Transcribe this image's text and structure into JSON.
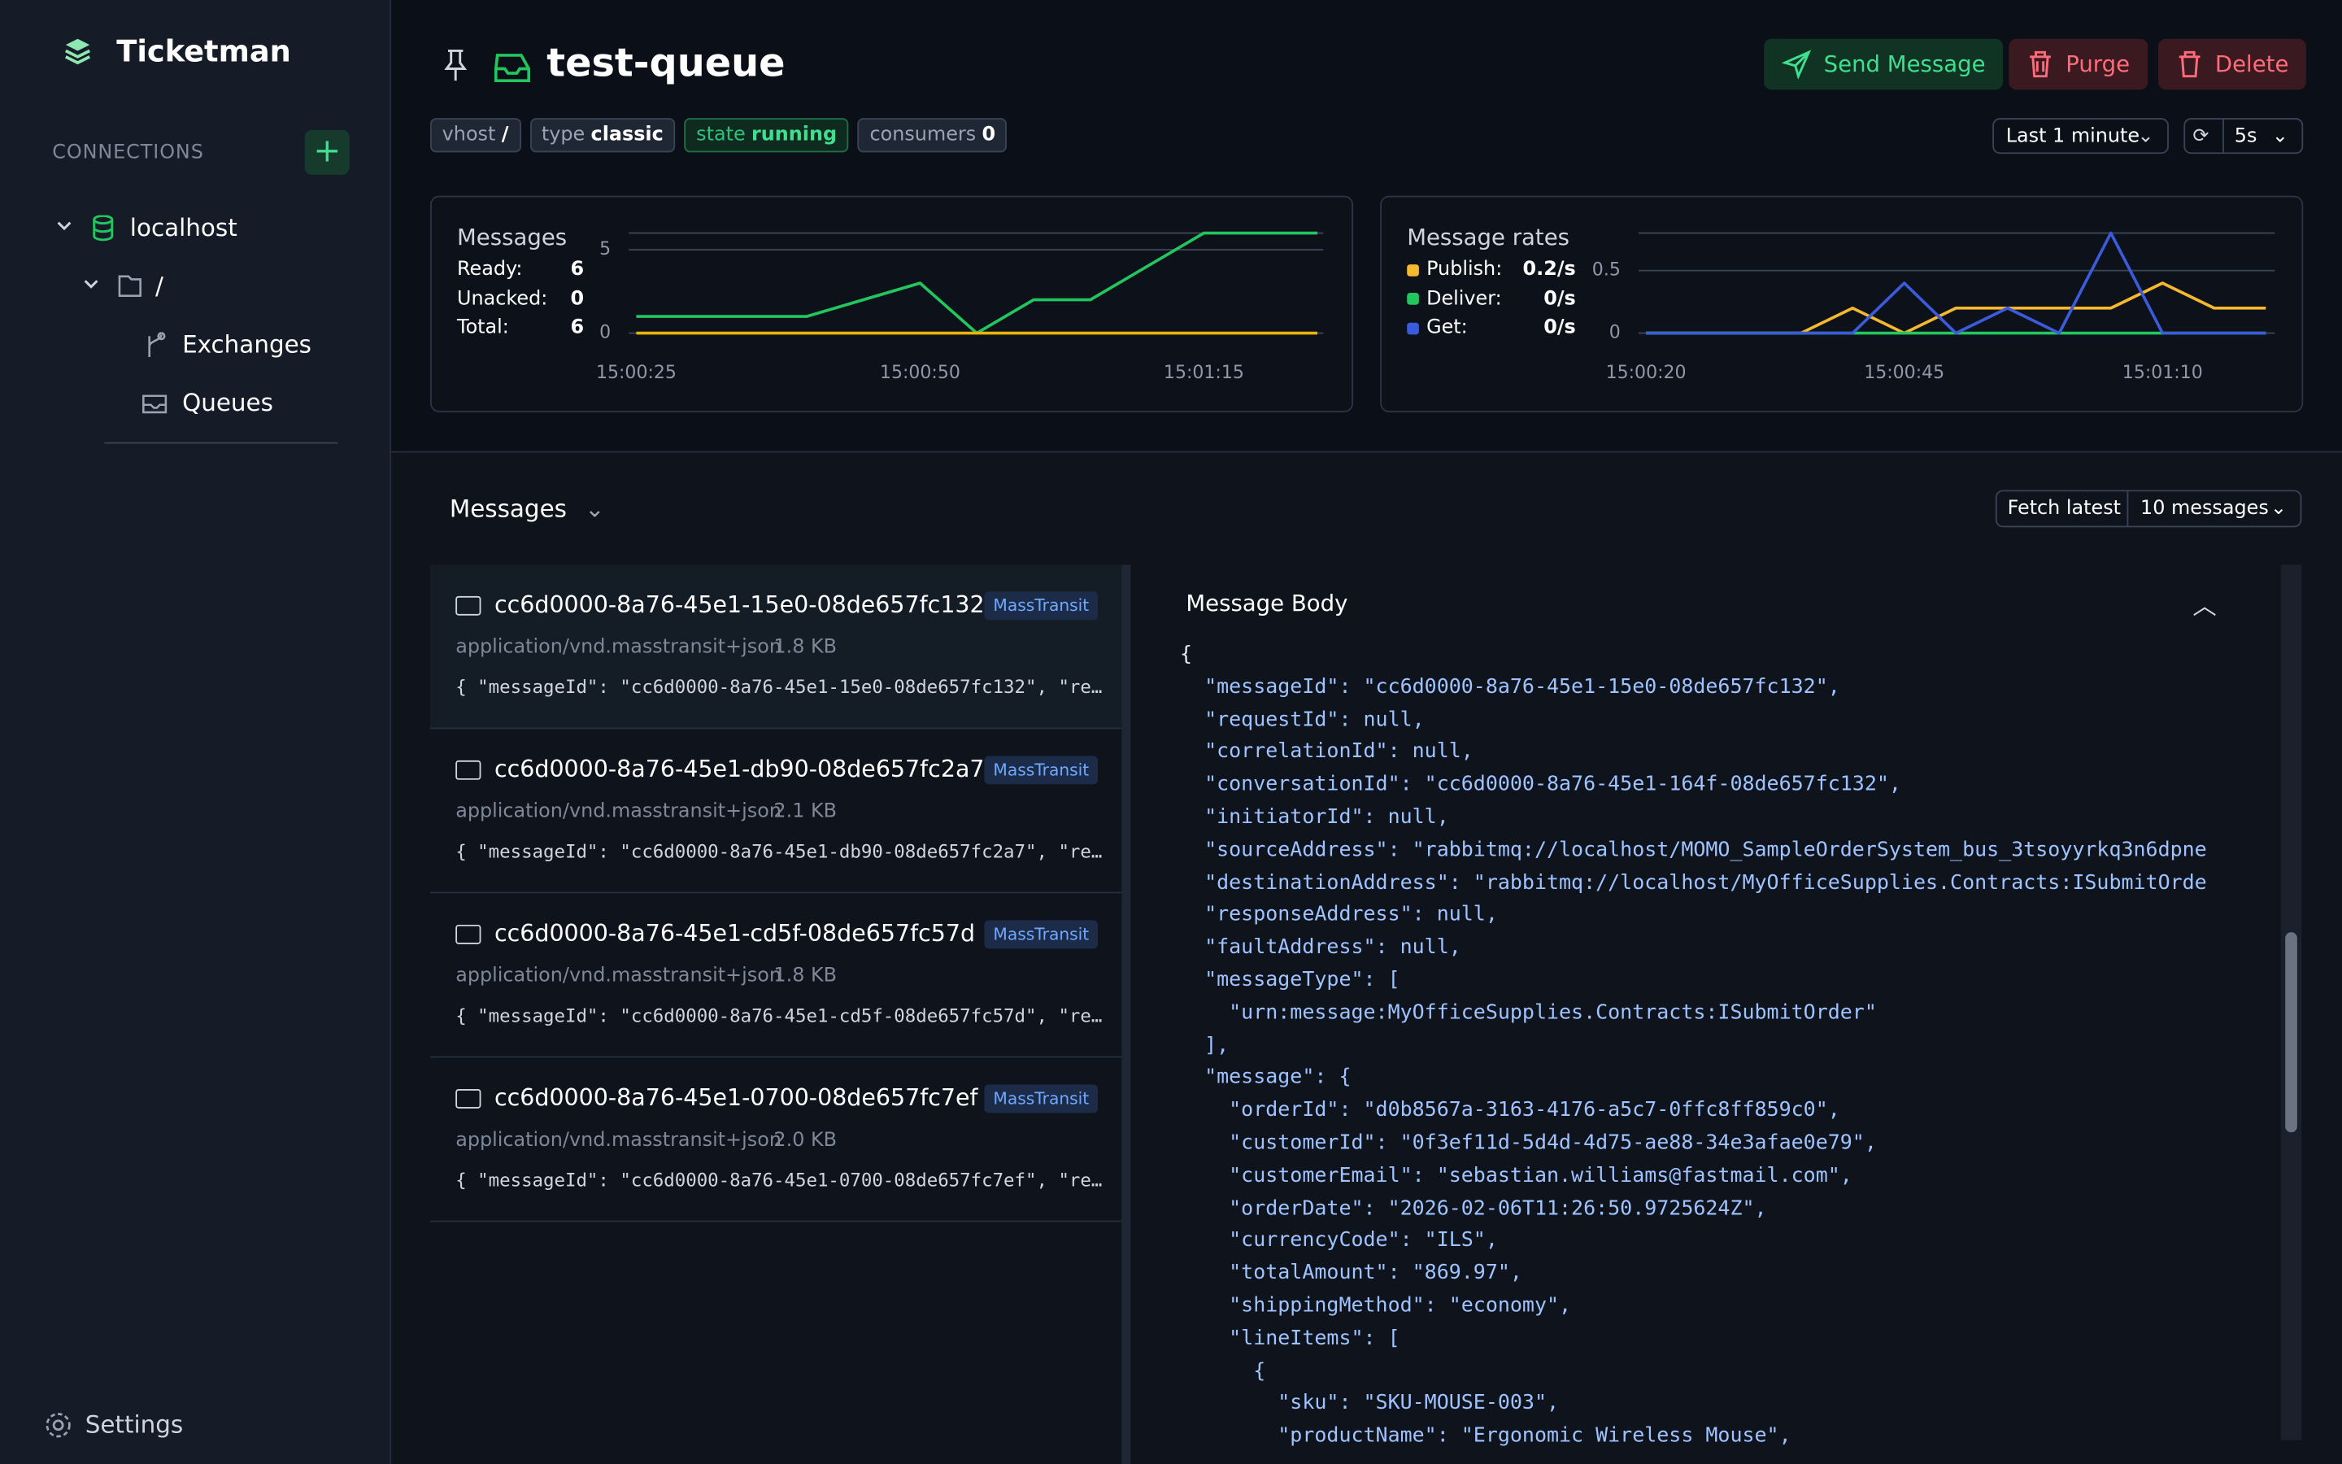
{
  "app_name": "Ticketman",
  "sidebar": {
    "connections_label": "CONNECTIONS",
    "tree": [
      "localhost",
      "/",
      "Exchanges",
      "Queues"
    ],
    "settings": "Settings"
  },
  "header": {
    "queue_name": "test-queue",
    "tags": [
      {
        "label": "vhost",
        "value": "/"
      },
      {
        "label": "type",
        "value": "classic"
      },
      {
        "label": "state",
        "value": "running"
      },
      {
        "label": "consumers",
        "value": "0"
      }
    ],
    "actions": [
      "Send Message",
      "Purge",
      "Delete"
    ],
    "time_range": "Last 1 minute",
    "refresh": "5s"
  },
  "charts": [
    {
      "type": "line",
      "title": "Messages",
      "categories": [
        "15:00:25",
        null,
        null,
        null,
        null,
        "15:00:50",
        null,
        null,
        null,
        null,
        "15:01:15",
        null,
        null
      ],
      "series": [
        {
          "name": "Ready:",
          "color": "#22c55e",
          "current": "6",
          "values": [
            1,
            1,
            1,
            1,
            2,
            3,
            0,
            2,
            2,
            4,
            6,
            6,
            6
          ]
        },
        {
          "name": "Unacked:",
          "color": "#eab308",
          "current": "0",
          "values": [
            0,
            0,
            0,
            0,
            0,
            0,
            0,
            0,
            0,
            0,
            0,
            0,
            0
          ]
        }
      ],
      "total": {
        "label": "Total:",
        "value": "6"
      },
      "ylim": [
        0,
        6
      ],
      "yticks": [
        0,
        5
      ],
      "grid": true
    },
    {
      "type": "line",
      "title": "Message rates",
      "categories": [
        "15:00:20",
        null,
        null,
        null,
        null,
        "15:00:45",
        null,
        null,
        null,
        null,
        "15:01:10",
        null,
        null
      ],
      "series": [
        {
          "name": "Publish:",
          "color": "#f5b82e",
          "current": "0.2/s",
          "values": [
            0,
            0,
            0,
            0,
            0.2,
            0,
            0.2,
            0.2,
            0.2,
            0.2,
            0.4,
            0.2,
            0.2
          ]
        },
        {
          "name": "Deliver:",
          "color": "#22c55e",
          "current": "0/s",
          "values": [
            0,
            0,
            0,
            0,
            0,
            0,
            0,
            0,
            0,
            0,
            0,
            0,
            0
          ]
        },
        {
          "name": "Get:",
          "color": "#3b5bdb",
          "current": "0/s",
          "values": [
            0,
            0,
            0,
            0,
            0,
            0.4,
            0,
            0.2,
            0,
            0.8,
            0,
            0,
            0
          ]
        }
      ],
      "ylim": [
        0,
        0.8
      ],
      "yticks": [
        0,
        0.5
      ],
      "grid": true
    }
  ],
  "messages_panel": {
    "title": "Messages",
    "fetch": "Fetch latest",
    "count": "10 messages",
    "items": [
      {
        "id": "cc6d0000-8a76-45e1-15e0-08de657fc132",
        "badge": "MassTransit",
        "content_type": "application/vnd.masstransit+json",
        "size": "1.8 KB",
        "preview": "{ \"messageId\": \"cc6d0000-8a76-45e1-15e0-08de657fc132\", \"re…"
      },
      {
        "id": "cc6d0000-8a76-45e1-db90-08de657fc2a7",
        "badge": "MassTransit",
        "content_type": "application/vnd.masstransit+json",
        "size": "2.1 KB",
        "preview": "{ \"messageId\": \"cc6d0000-8a76-45e1-db90-08de657fc2a7\", \"re…"
      },
      {
        "id": "cc6d0000-8a76-45e1-cd5f-08de657fc57d",
        "badge": "MassTransit",
        "content_type": "application/vnd.masstransit+json",
        "size": "1.8 KB",
        "preview": "{ \"messageId\": \"cc6d0000-8a76-45e1-cd5f-08de657fc57d\", \"re…"
      },
      {
        "id": "cc6d0000-8a76-45e1-0700-08de657fc7ef",
        "badge": "MassTransit",
        "content_type": "application/vnd.masstransit+json",
        "size": "2.0 KB",
        "preview": "{ \"messageId\": \"cc6d0000-8a76-45e1-0700-08de657fc7ef\", \"re…"
      }
    ]
  },
  "message_body": {
    "title": "Message Body",
    "lines": [
      "{",
      "  \"messageId\": \"cc6d0000-8a76-45e1-15e0-08de657fc132\",",
      "  \"requestId\": null,",
      "  \"correlationId\": null,",
      "  \"conversationId\": \"cc6d0000-8a76-45e1-164f-08de657fc132\",",
      "  \"initiatorId\": null,",
      "  \"sourceAddress\": \"rabbitmq://localhost/MOMO_SampleOrderSystem_bus_3tsoyyrkq3n6dpne",
      "  \"destinationAddress\": \"rabbitmq://localhost/MyOfficeSupplies.Contracts:ISubmitOrde",
      "  \"responseAddress\": null,",
      "  \"faultAddress\": null,",
      "  \"messageType\": [",
      "    \"urn:message:MyOfficeSupplies.Contracts:ISubmitOrder\"",
      "  ],",
      "  \"message\": {",
      "    \"orderId\": \"d0b8567a-3163-4176-a5c7-0ffc8ff859c0\",",
      "    \"customerId\": \"0f3ef11d-5d4d-4d75-ae88-34e3afae0e79\",",
      "    \"customerEmail\": \"sebastian.williams@fastmail.com\",",
      "    \"orderDate\": \"2026-02-06T11:26:50.9725624Z\",",
      "    \"currencyCode\": \"ILS\",",
      "    \"totalAmount\": \"869.97\",",
      "    \"shippingMethod\": \"economy\",",
      "    \"lineItems\": [",
      "      {",
      "        \"sku\": \"SKU-MOUSE-003\",",
      "        \"productName\": \"Ergonomic Wireless Mouse\","
    ]
  }
}
